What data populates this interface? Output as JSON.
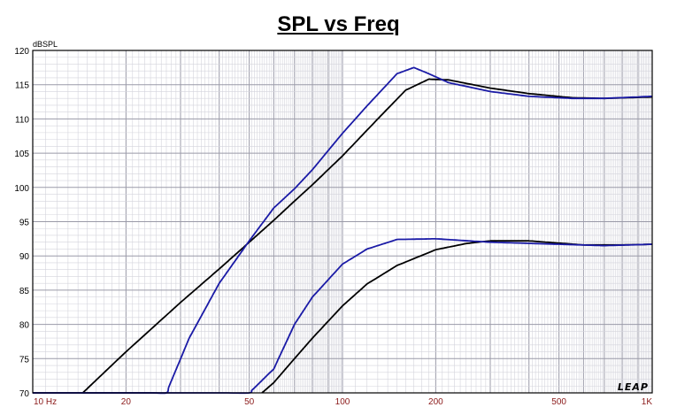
{
  "chart_data": {
    "type": "line",
    "title": "SPL vs Freq",
    "ylabel": "dBSPL",
    "xscale": "log",
    "xlim": [
      10,
      1000
    ],
    "ylim": [
      70,
      120
    ],
    "grid": true,
    "yticks": [
      70,
      75,
      80,
      85,
      90,
      95,
      100,
      105,
      110,
      115,
      120
    ],
    "xticks": [
      {
        "value": 10,
        "label": "10  Hz"
      },
      {
        "value": 20,
        "label": "20"
      },
      {
        "value": 50,
        "label": "50"
      },
      {
        "value": 100,
        "label": "100"
      },
      {
        "value": 200,
        "label": "200"
      },
      {
        "value": 500,
        "label": "500"
      },
      {
        "value": 1000,
        "label": "1K"
      }
    ],
    "watermark": "LEAP",
    "series": [
      {
        "color": "#000000",
        "x": [
          14.5,
          20,
          30,
          40,
          50,
          60,
          70,
          80,
          100,
          130,
          160,
          190,
          220,
          300,
          400,
          550,
          700,
          1000
        ],
        "y": [
          70,
          76,
          83.2,
          88.1,
          92,
          95.2,
          98,
          100.4,
          104.6,
          110,
          114.2,
          115.8,
          115.7,
          114.5,
          113.7,
          113.1,
          113,
          113.2
        ]
      },
      {
        "color": "#1a1aa6",
        "x": [
          10,
          27,
          32,
          40,
          50,
          60,
          70,
          80,
          100,
          120,
          150,
          170,
          190,
          220,
          300,
          400,
          550,
          700,
          1000
        ],
        "y": [
          70,
          70,
          78,
          86,
          92.2,
          97,
          99.8,
          102.6,
          107.9,
          111.9,
          116.6,
          117.5,
          116.6,
          115.3,
          114,
          113.3,
          113,
          113,
          113.3
        ]
      },
      {
        "color": "#000000",
        "x": [
          55,
          60,
          70,
          80,
          100,
          120,
          150,
          200,
          250,
          300,
          400,
          600,
          800,
          1000
        ],
        "y": [
          70,
          71.5,
          75,
          78,
          82.7,
          85.9,
          88.6,
          90.9,
          91.8,
          92.2,
          92.2,
          91.6,
          91.6,
          91.7
        ]
      },
      {
        "color": "#1a1aa6",
        "x": [
          10,
          50,
          60,
          70,
          80,
          100,
          120,
          150,
          200,
          300,
          500,
          700,
          1000
        ],
        "y": [
          70,
          70,
          73.5,
          80,
          84,
          88.8,
          91,
          92.4,
          92.5,
          92,
          91.7,
          91.5,
          91.7
        ]
      }
    ]
  }
}
